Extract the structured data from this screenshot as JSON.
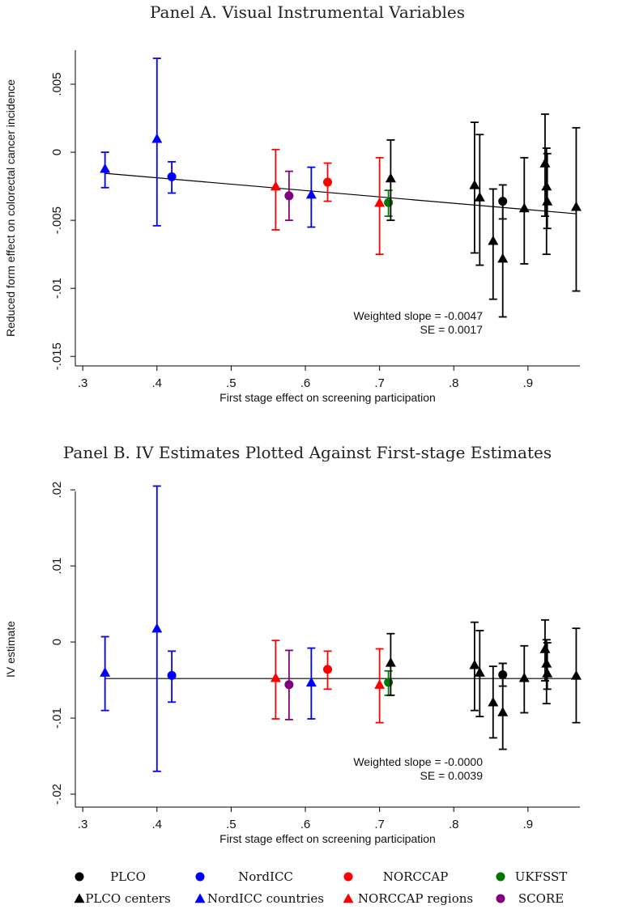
{
  "legend": {
    "items": [
      {
        "label": "PLCO",
        "color": "#000000",
        "marker": "circle"
      },
      {
        "label": "NordICC",
        "color": "#0000ff",
        "marker": "circle"
      },
      {
        "label": "NORCCAP",
        "color": "#ff0000",
        "marker": "circle"
      },
      {
        "label": "UKFSST",
        "color": "#007700",
        "marker": "circle"
      },
      {
        "label": "PLCO centers",
        "color": "#000000",
        "marker": "triangle"
      },
      {
        "label": "NordICC countries",
        "color": "#0000ff",
        "marker": "triangle"
      },
      {
        "label": "NORCCAP regions",
        "color": "#ff0000",
        "marker": "triangle"
      },
      {
        "label": "SCORE",
        "color": "#800080",
        "marker": "circle"
      }
    ]
  },
  "chart_data": [
    {
      "type": "scatter",
      "title": "Panel A. Visual Instrumental Variables",
      "xlabel": "First stage effect on screening participation",
      "ylabel": "Reduced form effect on colorectal cancer incidence",
      "xlim": [
        0.29,
        0.97
      ],
      "ylim": [
        -0.0157,
        0.0075
      ],
      "xticks": [
        0.3,
        0.4,
        0.5,
        0.6,
        0.7,
        0.8,
        0.9
      ],
      "xtick_labels": [
        ".3",
        ".4",
        ".5",
        ".6",
        ".7",
        ".8",
        ".9"
      ],
      "yticks": [
        0.005,
        0,
        -0.005,
        -0.01,
        -0.015
      ],
      "ytick_labels": [
        ".005",
        "0",
        "-.005",
        "-.01",
        "-.015"
      ],
      "annotation": [
        "Weighted slope = -0.0047",
        "SE = 0.0017"
      ],
      "fit_line": {
        "x": [
          0.33,
          0.965
        ],
        "y": [
          -0.00155,
          -0.00452
        ]
      },
      "points": [
        {
          "group": "NordICC countries",
          "color": "#0000ff",
          "marker": "triangle",
          "x": 0.33,
          "y": -0.0012,
          "lo": -0.0026,
          "hi": 0.0
        },
        {
          "group": "NordICC countries",
          "color": "#0000ff",
          "marker": "triangle",
          "x": 0.4,
          "y": 0.001,
          "lo": -0.0054,
          "hi": 0.0069
        },
        {
          "group": "NordICC",
          "color": "#0000ff",
          "marker": "circle",
          "x": 0.42,
          "y": -0.0018,
          "lo": -0.003,
          "hi": -0.0007
        },
        {
          "group": "NORCCAP regions",
          "color": "#ff0000",
          "marker": "triangle",
          "x": 0.56,
          "y": -0.0025,
          "lo": -0.0057,
          "hi": 0.0002
        },
        {
          "group": "SCORE",
          "color": "#800080",
          "marker": "circle",
          "x": 0.578,
          "y": -0.0032,
          "lo": -0.005,
          "hi": -0.0014
        },
        {
          "group": "NordICC countries",
          "color": "#0000ff",
          "marker": "triangle",
          "x": 0.608,
          "y": -0.0031,
          "lo": -0.0055,
          "hi": -0.0011
        },
        {
          "group": "NORCCAP",
          "color": "#ff0000",
          "marker": "circle",
          "x": 0.63,
          "y": -0.0022,
          "lo": -0.0036,
          "hi": -0.0008
        },
        {
          "group": "NORCCAP regions",
          "color": "#ff0000",
          "marker": "triangle",
          "x": 0.7,
          "y": -0.0037,
          "lo": -0.0075,
          "hi": -0.0004
        },
        {
          "group": "UKFSST",
          "color": "#007700",
          "marker": "circle",
          "x": 0.712,
          "y": -0.0037,
          "lo": -0.0047,
          "hi": -0.0028
        },
        {
          "group": "PLCO centers",
          "color": "#000000",
          "marker": "triangle",
          "x": 0.715,
          "y": -0.0019,
          "lo": -0.005,
          "hi": 0.0009
        },
        {
          "group": "PLCO centers",
          "color": "#000000",
          "marker": "triangle",
          "x": 0.828,
          "y": -0.0024,
          "lo": -0.0074,
          "hi": 0.0022
        },
        {
          "group": "PLCO centers",
          "color": "#000000",
          "marker": "triangle",
          "x": 0.835,
          "y": -0.0033,
          "lo": -0.0083,
          "hi": 0.0013
        },
        {
          "group": "PLCO centers",
          "color": "#000000",
          "marker": "triangle",
          "x": 0.853,
          "y": -0.0065,
          "lo": -0.0108,
          "hi": -0.0027
        },
        {
          "group": "PLCO centers",
          "color": "#000000",
          "marker": "triangle",
          "x": 0.866,
          "y": -0.0078,
          "lo": -0.0121,
          "hi": -0.0036
        },
        {
          "group": "PLCO",
          "color": "#000000",
          "marker": "circle",
          "x": 0.866,
          "y": -0.0036,
          "lo": -0.0049,
          "hi": -0.0024
        },
        {
          "group": "PLCO centers",
          "color": "#000000",
          "marker": "triangle",
          "x": 0.895,
          "y": -0.0041,
          "lo": -0.0082,
          "hi": -0.0004
        },
        {
          "group": "PLCO centers",
          "color": "#000000",
          "marker": "triangle",
          "x": 0.923,
          "y": -0.0008,
          "lo": -0.0047,
          "hi": 0.0028
        },
        {
          "group": "PLCO centers",
          "color": "#000000",
          "marker": "triangle",
          "x": 0.925,
          "y": -0.0025,
          "lo": -0.0075,
          "hi": 0.0003
        },
        {
          "group": "PLCO centers",
          "color": "#000000",
          "marker": "triangle",
          "x": 0.926,
          "y": -0.0036,
          "lo": -0.0056,
          "hi": -0.0001
        },
        {
          "group": "PLCO centers",
          "color": "#000000",
          "marker": "triangle",
          "x": 0.965,
          "y": -0.004,
          "lo": -0.0102,
          "hi": 0.0018
        }
      ]
    },
    {
      "type": "scatter",
      "title": "Panel B. IV Estimates Plotted Against First-stage Estimates",
      "xlabel": "First stage effect on screening participation",
      "ylabel": "IV estimate",
      "xlim": [
        0.29,
        0.97
      ],
      "ylim": [
        -0.0217,
        0.0198
      ],
      "xticks": [
        0.3,
        0.4,
        0.5,
        0.6,
        0.7,
        0.8,
        0.9
      ],
      "xtick_labels": [
        ".3",
        ".4",
        ".5",
        ".6",
        ".7",
        ".8",
        ".9"
      ],
      "yticks": [
        0.02,
        0.01,
        0,
        -0.01,
        -0.02
      ],
      "ytick_labels": [
        ".02",
        ".01",
        "0",
        "-.01",
        "-.02"
      ],
      "annotation": [
        "Weighted slope = -0.0000",
        "SE = 0.0039"
      ],
      "fit_line": {
        "x": [
          0.33,
          0.965
        ],
        "y": [
          -0.0048,
          -0.0048
        ]
      },
      "points": [
        {
          "group": "NordICC countries",
          "color": "#0000ff",
          "marker": "triangle",
          "x": 0.33,
          "y": -0.004,
          "lo": -0.009,
          "hi": 0.0007
        },
        {
          "group": "NordICC countries",
          "color": "#0000ff",
          "marker": "triangle",
          "x": 0.4,
          "y": 0.0018,
          "lo": -0.017,
          "hi": 0.0205
        },
        {
          "group": "NordICC",
          "color": "#0000ff",
          "marker": "circle",
          "x": 0.42,
          "y": -0.0044,
          "lo": -0.0079,
          "hi": -0.0012
        },
        {
          "group": "NORCCAP regions",
          "color": "#ff0000",
          "marker": "triangle",
          "x": 0.56,
          "y": -0.0047,
          "lo": -0.0101,
          "hi": 0.0002
        },
        {
          "group": "SCORE",
          "color": "#800080",
          "marker": "circle",
          "x": 0.578,
          "y": -0.0056,
          "lo": -0.0102,
          "hi": -0.0011
        },
        {
          "group": "NordICC countries",
          "color": "#0000ff",
          "marker": "triangle",
          "x": 0.608,
          "y": -0.0053,
          "lo": -0.0101,
          "hi": -0.0008
        },
        {
          "group": "NORCCAP",
          "color": "#ff0000",
          "marker": "circle",
          "x": 0.63,
          "y": -0.0036,
          "lo": -0.0062,
          "hi": -0.0012
        },
        {
          "group": "NORCCAP regions",
          "color": "#ff0000",
          "marker": "triangle",
          "x": 0.7,
          "y": -0.0056,
          "lo": -0.0106,
          "hi": -0.0009
        },
        {
          "group": "UKFSST",
          "color": "#007700",
          "marker": "circle",
          "x": 0.712,
          "y": -0.0053,
          "lo": -0.007,
          "hi": -0.0038
        },
        {
          "group": "PLCO centers",
          "color": "#000000",
          "marker": "triangle",
          "x": 0.715,
          "y": -0.0027,
          "lo": -0.007,
          "hi": 0.0011
        },
        {
          "group": "PLCO centers",
          "color": "#000000",
          "marker": "triangle",
          "x": 0.828,
          "y": -0.003,
          "lo": -0.009,
          "hi": 0.0026
        },
        {
          "group": "PLCO centers",
          "color": "#000000",
          "marker": "triangle",
          "x": 0.835,
          "y": -0.004,
          "lo": -0.0098,
          "hi": 0.0015
        },
        {
          "group": "PLCO centers",
          "color": "#000000",
          "marker": "triangle",
          "x": 0.853,
          "y": -0.0079,
          "lo": -0.0126,
          "hi": -0.0032
        },
        {
          "group": "PLCO centers",
          "color": "#000000",
          "marker": "triangle",
          "x": 0.866,
          "y": -0.0092,
          "lo": -0.0141,
          "hi": -0.0028
        },
        {
          "group": "PLCO",
          "color": "#000000",
          "marker": "circle",
          "x": 0.866,
          "y": -0.0043,
          "lo": -0.0058,
          "hi": -0.0028
        },
        {
          "group": "PLCO centers",
          "color": "#000000",
          "marker": "triangle",
          "x": 0.895,
          "y": -0.0047,
          "lo": -0.0093,
          "hi": -0.0005
        },
        {
          "group": "PLCO centers",
          "color": "#000000",
          "marker": "triangle",
          "x": 0.923,
          "y": -0.0009,
          "lo": -0.0051,
          "hi": 0.0029
        },
        {
          "group": "PLCO centers",
          "color": "#000000",
          "marker": "triangle",
          "x": 0.925,
          "y": -0.0028,
          "lo": -0.0081,
          "hi": 0.0003
        },
        {
          "group": "PLCO centers",
          "color": "#000000",
          "marker": "triangle",
          "x": 0.926,
          "y": -0.0041,
          "lo": -0.0062,
          "hi": -0.0001
        },
        {
          "group": "PLCO centers",
          "color": "#000000",
          "marker": "triangle",
          "x": 0.965,
          "y": -0.0044,
          "lo": -0.0106,
          "hi": 0.0018
        }
      ]
    }
  ]
}
